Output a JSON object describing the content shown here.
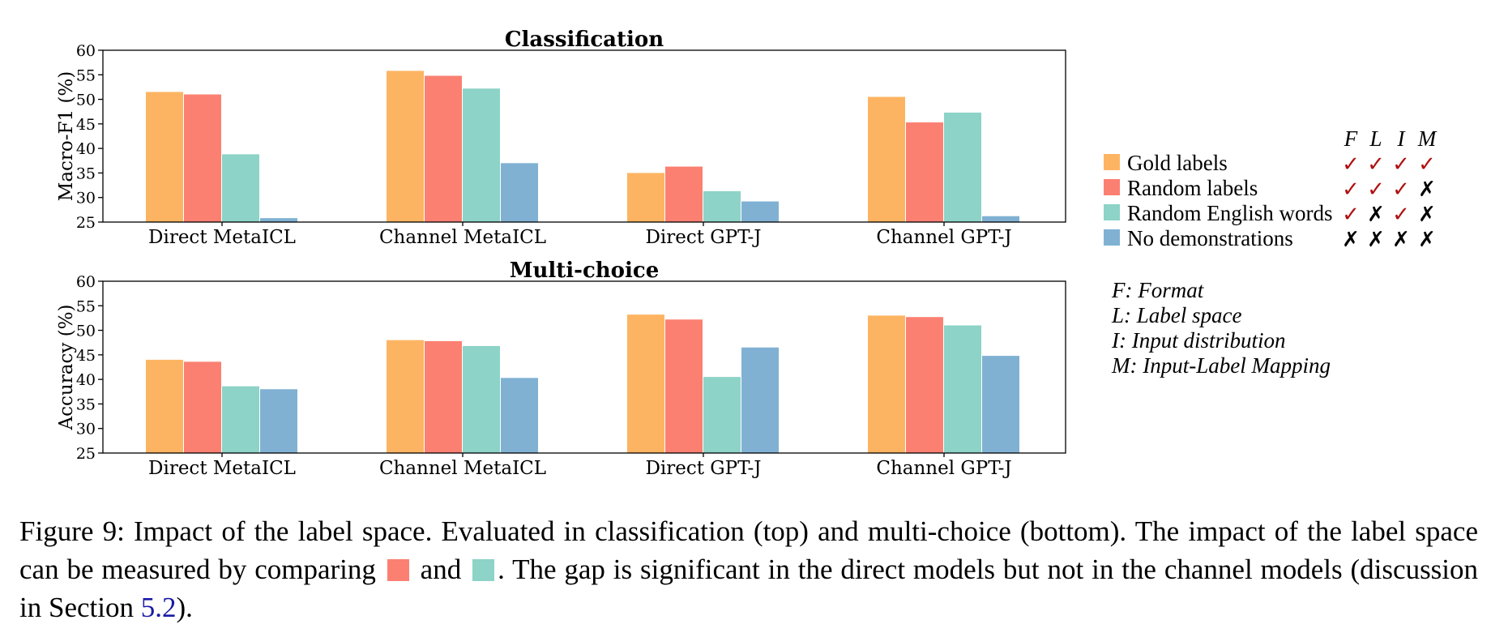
{
  "chart_data": [
    {
      "type": "bar",
      "title": "Classification",
      "ylabel": "Macro-F1 (%)",
      "ylim": [
        25,
        60
      ],
      "yticks": [
        25,
        30,
        35,
        40,
        45,
        50,
        55,
        60
      ],
      "categories": [
        "Direct MetaICL",
        "Channel MetaICL",
        "Direct GPT-J",
        "Channel GPT-J"
      ],
      "series": [
        {
          "name": "Gold labels",
          "values": [
            51.5,
            55.8,
            35.0,
            50.5
          ]
        },
        {
          "name": "Random labels",
          "values": [
            51.0,
            54.8,
            36.3,
            45.3
          ]
        },
        {
          "name": "Random English words",
          "values": [
            38.8,
            52.2,
            31.3,
            47.3
          ]
        },
        {
          "name": "No demonstrations",
          "values": [
            25.8,
            37.0,
            29.2,
            26.2
          ]
        }
      ]
    },
    {
      "type": "bar",
      "title": "Multi-choice",
      "ylabel": "Accuracy (%)",
      "ylim": [
        25,
        60
      ],
      "yticks": [
        25,
        30,
        35,
        40,
        45,
        50,
        55,
        60
      ],
      "categories": [
        "Direct MetaICL",
        "Channel MetaICL",
        "Direct GPT-J",
        "Channel GPT-J"
      ],
      "series": [
        {
          "name": "Gold labels",
          "values": [
            44.0,
            48.0,
            53.2,
            53.0
          ]
        },
        {
          "name": "Random labels",
          "values": [
            43.6,
            47.8,
            52.2,
            52.7
          ]
        },
        {
          "name": "Random English words",
          "values": [
            38.6,
            46.8,
            40.5,
            51.0
          ]
        },
        {
          "name": "No demonstrations",
          "values": [
            38.0,
            40.3,
            46.5,
            44.8
          ]
        }
      ]
    }
  ],
  "colors": {
    "series": [
      "#fdb462",
      "#fb8072",
      "#8dd3c7",
      "#80b1d3"
    ],
    "check": "#b01010",
    "cross": "#000000",
    "link": "#1a1aa6"
  },
  "legend": {
    "columns": [
      "F",
      "L",
      "I",
      "M"
    ],
    "rows": [
      {
        "label": "Gold labels",
        "marks": [
          "✓",
          "✓",
          "✓",
          "✓"
        ]
      },
      {
        "label": "Random labels",
        "marks": [
          "✓",
          "✓",
          "✓",
          "✗"
        ]
      },
      {
        "label": "Random English words",
        "marks": [
          "✓",
          "✗",
          "✓",
          "✗"
        ]
      },
      {
        "label": "No demonstrations",
        "marks": [
          "✗",
          "✗",
          "✗",
          "✗"
        ]
      }
    ]
  },
  "notes": [
    "F: Format",
    "L: Label space",
    "I: Input distribution",
    "M: Input-Label Mapping"
  ],
  "caption": {
    "part1": "Figure 9: Impact of the label space. Evaluated in classification (top) and multi-choice (bottom). The impact of the label space can be measured by comparing",
    "part2": "and",
    "part3": ". The gap is significant in the direct models but not in the channel models (discussion in Section",
    "section_ref": "5.2",
    "part4": ")."
  }
}
